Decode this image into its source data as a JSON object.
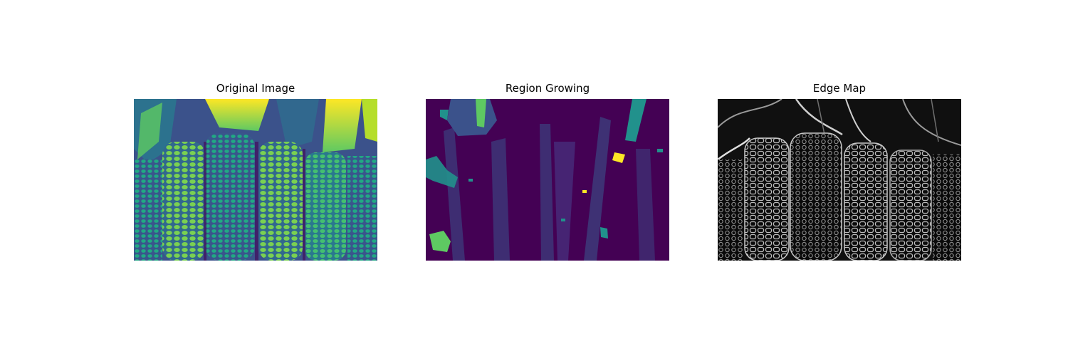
{
  "panels": [
    {
      "title": "Original Image",
      "colormap": "viridis"
    },
    {
      "title": "Region Growing",
      "colormap": "viridis"
    },
    {
      "title": "Edge Map",
      "colormap": "gray"
    }
  ],
  "colors": {
    "background": "#ffffff",
    "viridis_dark": "#440154",
    "viridis_blue": "#3b528b",
    "viridis_teal": "#21918c",
    "viridis_green": "#5ec962",
    "viridis_yellow": "#fde725",
    "edge_dark": "#000000",
    "edge_light": "#ffffff"
  }
}
